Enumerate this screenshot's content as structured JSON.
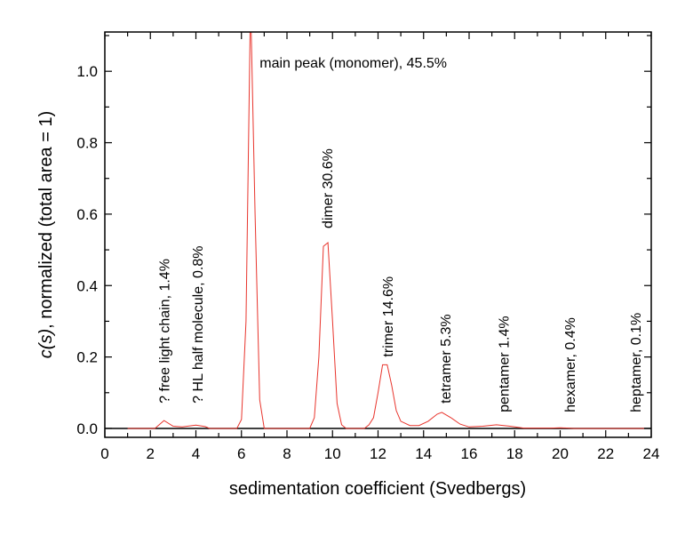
{
  "chart_data": {
    "type": "line",
    "title": "",
    "xlabel": "sedimentation coefficient (Svedbergs)",
    "ylabel_italic": "c(s)",
    "ylabel_rest": ", normalized (total area = 1)",
    "xlim": [
      0,
      24
    ],
    "ylim": [
      -0.025,
      1.11
    ],
    "xticks": [
      0,
      2,
      4,
      6,
      8,
      10,
      12,
      14,
      16,
      18,
      20,
      22,
      24
    ],
    "xtick_labels": [
      "0",
      "2",
      "4",
      "6",
      "8",
      "10",
      "12",
      "14",
      "16",
      "18",
      "20",
      "22",
      "24"
    ],
    "yticks": [
      0.0,
      0.2,
      0.4,
      0.6,
      0.8,
      1.0
    ],
    "ytick_labels": [
      "0.0",
      "0.2",
      "0.4",
      "0.6",
      "0.8",
      "1.0"
    ],
    "grid": false,
    "line_color": "#e8342c",
    "zero_line_color": "#000000",
    "series": [
      {
        "x": [
          1.0,
          2.2,
          2.6,
          3.0,
          3.4,
          4.0,
          4.4,
          4.6,
          5.8,
          6.0,
          6.2,
          6.4,
          6.6,
          6.8,
          7.0,
          9.0,
          9.2,
          9.4,
          9.6,
          9.8,
          10.0,
          10.2,
          10.4,
          10.6,
          11.4,
          11.6,
          11.8,
          12.0,
          12.2,
          12.4,
          12.6,
          12.8,
          13.0,
          13.4,
          13.8,
          14.2,
          14.6,
          14.8,
          15.2,
          15.6,
          16.0,
          16.6,
          17.2,
          17.8,
          18.4,
          19.6,
          20.0,
          20.6,
          24.0
        ],
        "y": [
          0,
          0,
          0.022,
          0.006,
          0.004,
          0.009,
          0.005,
          0,
          0,
          0.025,
          0.3,
          1.2,
          0.6,
          0.08,
          0,
          0,
          0.03,
          0.2,
          0.51,
          0.52,
          0.3,
          0.07,
          0.01,
          0,
          0,
          0.01,
          0.03,
          0.1,
          0.178,
          0.178,
          0.12,
          0.05,
          0.02,
          0.008,
          0.008,
          0.02,
          0.04,
          0.045,
          0.03,
          0.012,
          0.004,
          0.006,
          0.01,
          0.006,
          0.001,
          0.001,
          0.002,
          0,
          0
        ]
      }
    ],
    "annotations": [
      {
        "text": "main peak (monomer), 45.5%",
        "x": 6.8,
        "y": 1.01,
        "rotated": false
      },
      {
        "text": "? free light chain, 1.4%",
        "x": 2.6,
        "y": 0.07,
        "rotated": true
      },
      {
        "text": "? HL half molecule, 0.8%",
        "x": 4.05,
        "y": 0.07,
        "rotated": true
      },
      {
        "text": "dimer 30.6%",
        "x": 9.75,
        "y": 0.56,
        "rotated": true
      },
      {
        "text": "trimer 14.6%",
        "x": 12.4,
        "y": 0.2,
        "rotated": true
      },
      {
        "text": "tetramer 5.3%",
        "x": 14.95,
        "y": 0.07,
        "rotated": true
      },
      {
        "text": "pentamer 1.4%",
        "x": 17.5,
        "y": 0.045,
        "rotated": true
      },
      {
        "text": "hexamer, 0.4%",
        "x": 20.4,
        "y": 0.045,
        "rotated": true
      },
      {
        "text": "heptamer, 0.1%",
        "x": 23.3,
        "y": 0.045,
        "rotated": true
      }
    ]
  }
}
